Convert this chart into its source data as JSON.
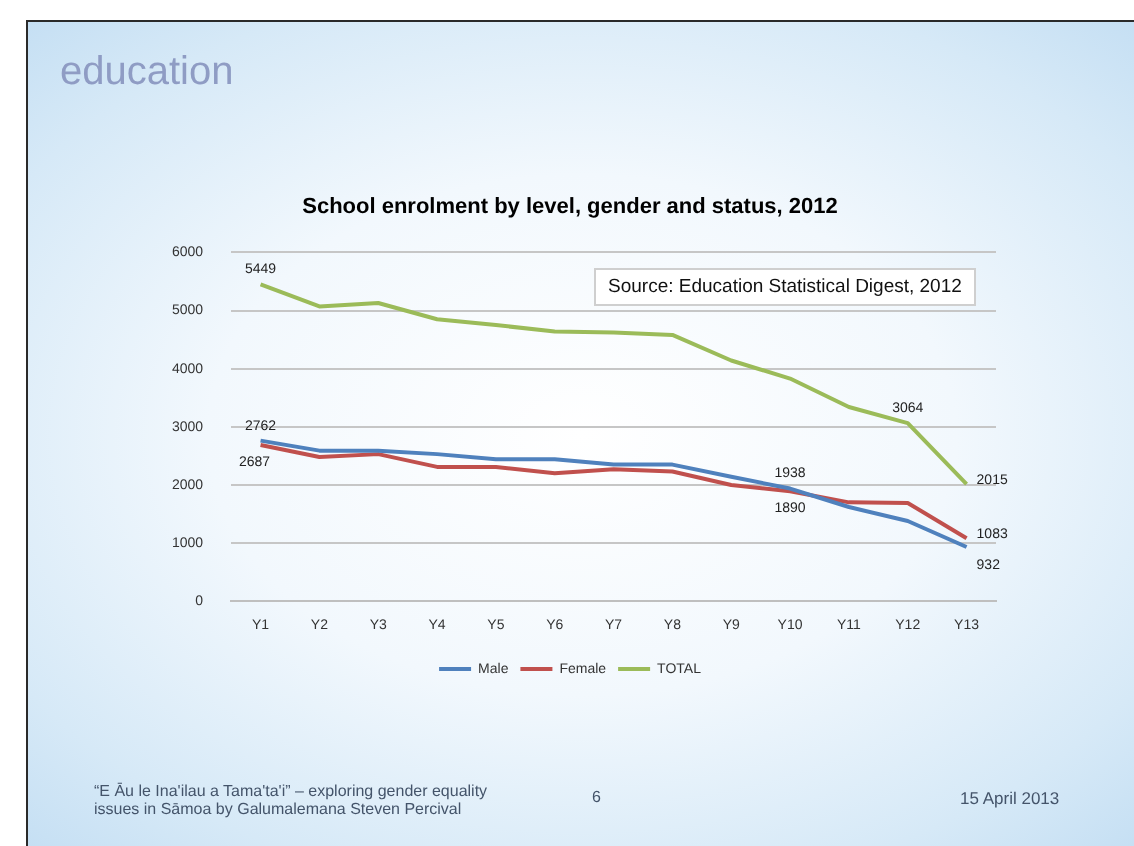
{
  "chart_data": {
    "type": "line",
    "title": "School enrolment by level, gender and status, 2012",
    "categories": [
      "Y1",
      "Y2",
      "Y3",
      "Y4",
      "Y5",
      "Y6",
      "Y7",
      "Y8",
      "Y9",
      "Y10",
      "Y11",
      "Y12",
      "Y13"
    ],
    "series": [
      {
        "name": "Male",
        "color": "#4f81bd",
        "values": [
          2762,
          2590,
          2590,
          2530,
          2440,
          2440,
          2350,
          2350,
          2140,
          1938,
          1620,
          1380,
          932
        ],
        "value_labels": [
          "2762",
          null,
          null,
          null,
          null,
          null,
          null,
          null,
          null,
          "1938",
          null,
          null,
          "932"
        ]
      },
      {
        "name": "Female",
        "color": "#c0504d",
        "values": [
          2687,
          2480,
          2530,
          2310,
          2310,
          2200,
          2270,
          2230,
          2000,
          1890,
          1700,
          1690,
          1083
        ],
        "value_labels": [
          "2687",
          null,
          null,
          null,
          null,
          null,
          null,
          null,
          null,
          "1890",
          null,
          null,
          "1083"
        ]
      },
      {
        "name": "TOTAL",
        "color": "#9bbb59",
        "values": [
          5449,
          5070,
          5130,
          4850,
          4750,
          4640,
          4620,
          4580,
          4140,
          3830,
          3340,
          3064,
          2015
        ],
        "value_labels": [
          "5449",
          null,
          null,
          null,
          null,
          null,
          null,
          null,
          null,
          null,
          null,
          "3064",
          "2015"
        ]
      }
    ],
    "ylim": [
      0,
      6000
    ],
    "yticks": [
      0,
      1000,
      2000,
      3000,
      4000,
      5000,
      6000
    ],
    "grid": "y",
    "legend": "bottom",
    "marker": "none",
    "annotations": [
      "education",
      "Source: Education Statistical Digest, 2012",
      "“E Āu le Ina'ilau a Tama'ta'i” – exploring gender equality issues in Sāmoa by Galumalemana Steven Percival",
      "6",
      "15 April 2013"
    ]
  }
}
